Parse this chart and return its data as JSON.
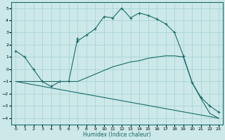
{
  "xlabel": "Humidex (Indice chaleur)",
  "background_color": "#cce8e8",
  "grid_color": "#aad4d4",
  "line_color": "#1a6b6b",
  "xlim": [
    -0.5,
    23.5
  ],
  "ylim": [
    -4.5,
    5.5
  ],
  "xticks": [
    0,
    1,
    2,
    3,
    4,
    5,
    6,
    7,
    8,
    9,
    10,
    11,
    12,
    13,
    14,
    15,
    16,
    17,
    18,
    19,
    20,
    21,
    22,
    23
  ],
  "yticks": [
    -4,
    -3,
    -2,
    -1,
    0,
    1,
    2,
    3,
    4,
    5
  ],
  "series1_x": [
    0,
    1,
    2,
    3,
    4,
    5,
    6,
    7,
    7,
    8,
    9,
    10,
    11,
    12,
    13,
    14,
    15,
    16,
    17,
    18,
    19,
    20,
    21,
    22,
    23
  ],
  "series1_y": [
    1.5,
    1.0,
    0.0,
    -1.0,
    -1.4,
    -1.0,
    -1.0,
    2.5,
    2.3,
    2.8,
    3.3,
    4.3,
    4.2,
    5.0,
    4.2,
    4.6,
    4.4,
    4.1,
    3.7,
    3.0,
    1.1,
    -1.1,
    -2.3,
    -3.0,
    -3.5
  ],
  "series2_x": [
    0,
    3,
    4,
    5,
    6,
    7,
    8,
    9,
    10,
    11,
    12,
    13,
    14,
    15,
    16,
    17,
    18,
    19,
    20,
    21,
    22,
    23
  ],
  "series2_y": [
    -1.0,
    -1.0,
    -1.0,
    -1.0,
    -1.0,
    -1.0,
    -0.7,
    -0.4,
    -0.1,
    0.2,
    0.4,
    0.6,
    0.7,
    0.9,
    1.0,
    1.1,
    1.1,
    1.0,
    -1.1,
    -2.4,
    -3.6,
    -4.0
  ],
  "series3_x": [
    0,
    23
  ],
  "series3_y": [
    -1.0,
    -4.0
  ]
}
